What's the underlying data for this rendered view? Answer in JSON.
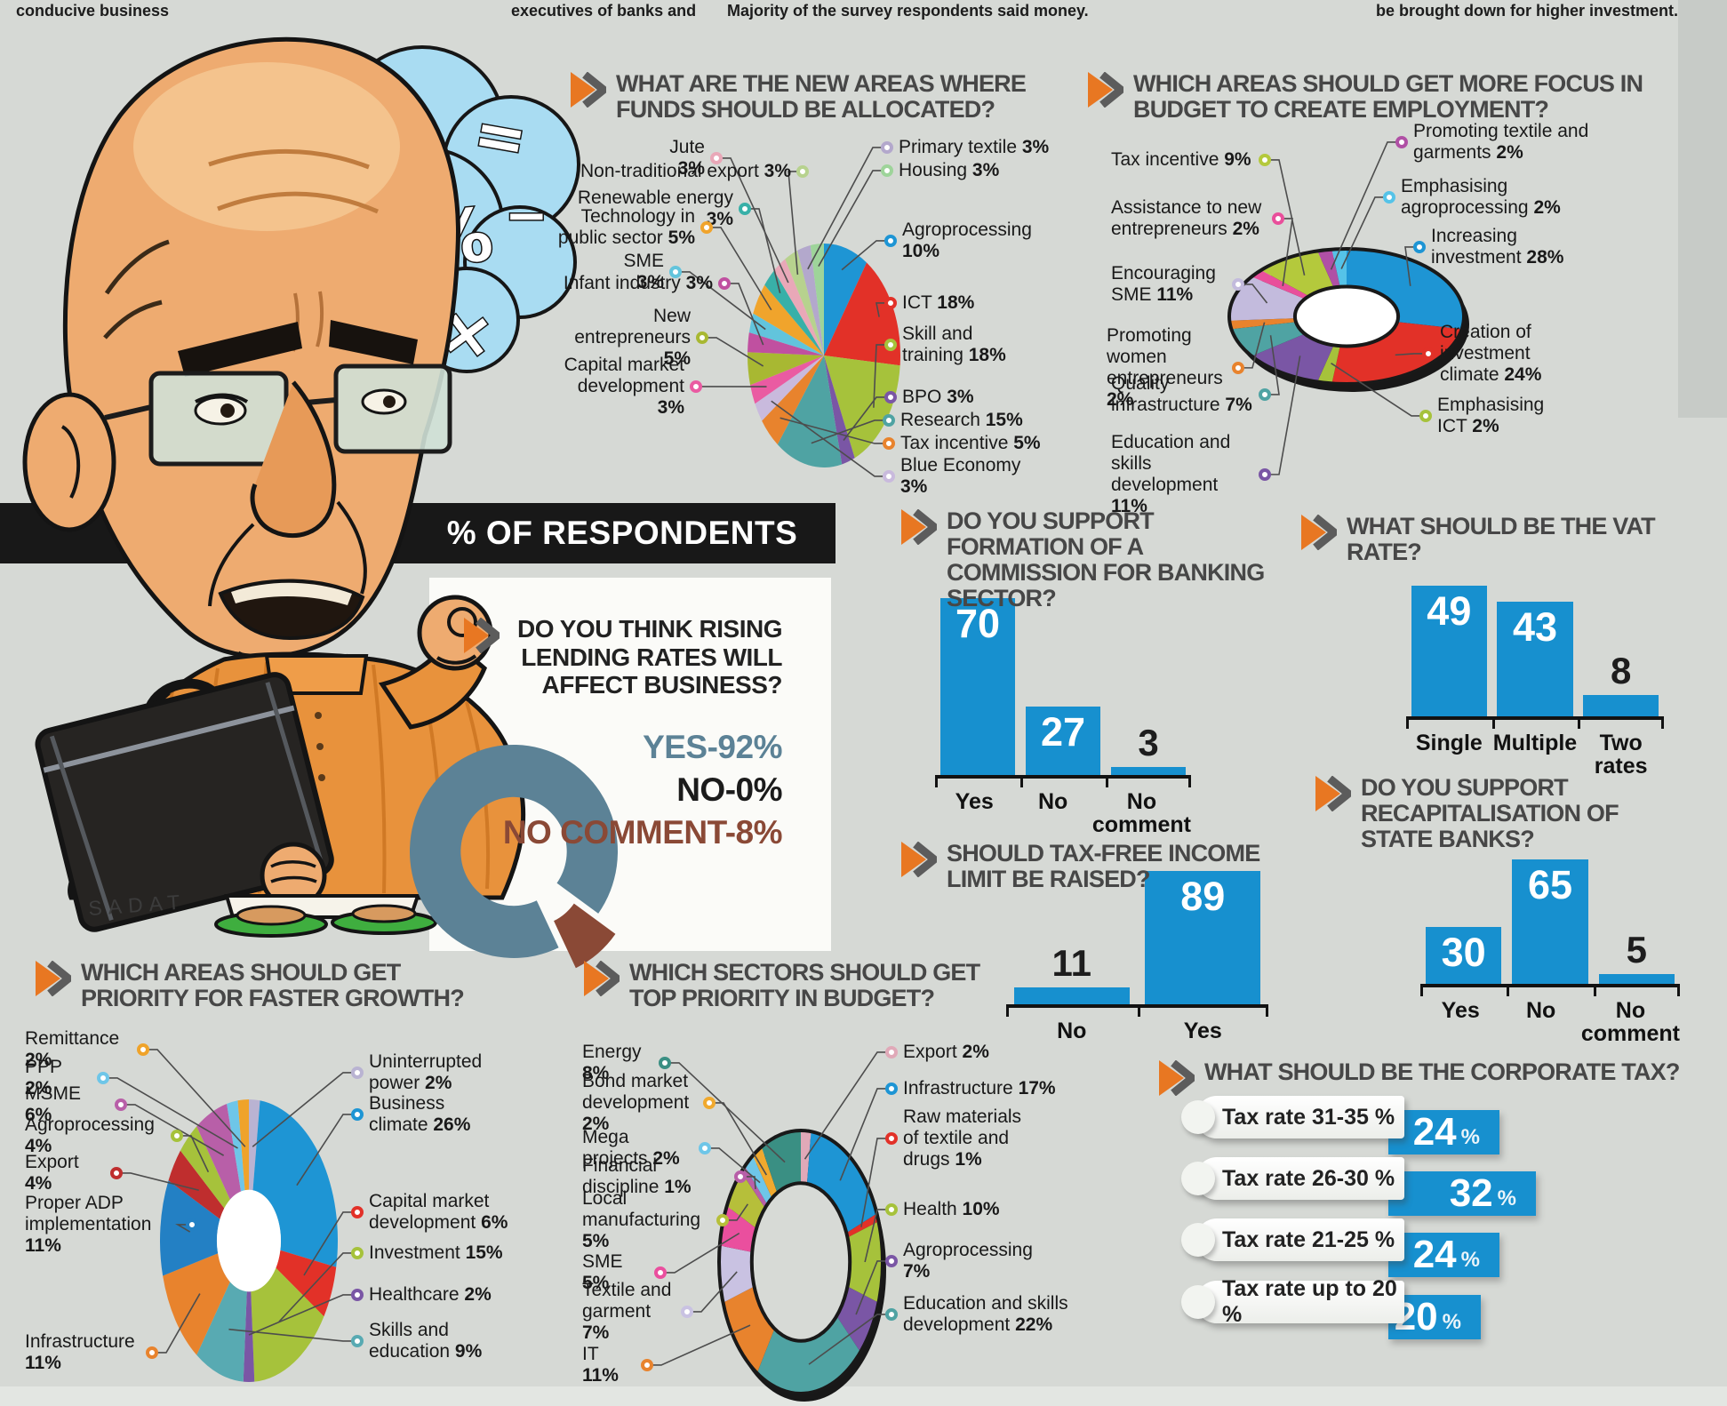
{
  "page": {
    "top_strip": [
      "conducive business",
      "executives of banks and",
      "Majority of the survey respondents said",
      "money.",
      "be brought down for higher investment."
    ],
    "banner": "% OF RESPONDENTS",
    "signature": "SADAT",
    "math_symbols": [
      "+",
      "=",
      "−",
      "%",
      "−",
      "×"
    ],
    "accent_orange": "#e87722",
    "bar_blue": "#1790cf"
  },
  "chart_data": [
    {
      "id": "funds",
      "type": "pie",
      "title": "WHAT ARE THE NEW AREAS WHERE FUNDS SHOULD BE ALLOCATED?",
      "unit": "%",
      "legend_position": "around",
      "slices": [
        {
          "name": "Agroprocessing",
          "pct": "10%",
          "value": 10,
          "color": "#1e95d4"
        },
        {
          "name": "ICT",
          "pct": "18%",
          "value": 18,
          "color": "#e23128"
        },
        {
          "name": "Skill and training",
          "pct": "18%",
          "value": 18,
          "color": "#a6c23b"
        },
        {
          "name": "BPO",
          "pct": "3%",
          "value": 3,
          "color": "#7a56a5"
        },
        {
          "name": "Research",
          "pct": "15%",
          "value": 15,
          "color": "#4fa3a3"
        },
        {
          "name": "Tax incentive",
          "pct": "5%",
          "value": 5,
          "color": "#e8832d"
        },
        {
          "name": "Blue Economy",
          "pct": "3%",
          "value": 3,
          "color": "#c9badd"
        },
        {
          "name": "Capital market development",
          "pct": "3%",
          "value": 3,
          "color": "#ea5ba2"
        },
        {
          "name": "New entrepreneurs",
          "pct": "5%",
          "value": 5,
          "color": "#a8b832"
        },
        {
          "name": "Infant industry",
          "pct": "3%",
          "value": 3,
          "color": "#c050a0"
        },
        {
          "name": "SME",
          "pct": "3%",
          "value": 3,
          "color": "#62c4dc"
        },
        {
          "name": "Technology in public sector",
          "pct": "5%",
          "value": 5,
          "color": "#f0a42c"
        },
        {
          "name": "Renewable energy",
          "pct": "3%",
          "value": 3,
          "color": "#38b0a8"
        },
        {
          "name": "Jute",
          "pct": "3%",
          "value": 3,
          "color": "#e9a8b8"
        },
        {
          "name": "Non-traditional export",
          "pct": "3%",
          "value": 3,
          "color": "#b7d28e"
        },
        {
          "name": "Primary textile",
          "pct": "3%",
          "value": 3,
          "color": "#b3a8cc"
        },
        {
          "name": "Housing",
          "pct": "3%",
          "value": 3,
          "color": "#9ed49a"
        }
      ]
    },
    {
      "id": "employment",
      "type": "donut",
      "title": "WHICH AREAS SHOULD GET MORE FOCUS IN BUDGET TO CREATE EMPLOYMENT?",
      "unit": "%",
      "slices": [
        {
          "name": "Increasing investment",
          "pct": "28%",
          "value": 28,
          "color": "#1e95d4"
        },
        {
          "name": "Creation of investment climate",
          "pct": "24%",
          "value": 24,
          "color": "#e23128"
        },
        {
          "name": "Emphasising ICT",
          "pct": "2%",
          "value": 2,
          "color": "#a6c23b"
        },
        {
          "name": "Education and skills development",
          "pct": "11%",
          "value": 11,
          "color": "#7a56a5"
        },
        {
          "name": "Quality infrastructure",
          "pct": "7%",
          "value": 7,
          "color": "#4fa3a3"
        },
        {
          "name": "Promoting women entrepreneurs",
          "pct": "2%",
          "value": 2,
          "color": "#e8832d"
        },
        {
          "name": "Encouraging SME",
          "pct": "11%",
          "value": 11,
          "color": "#c3bbdd"
        },
        {
          "name": "Assistance to new entrepreneurs",
          "pct": "2%",
          "value": 2,
          "color": "#e94f9b"
        },
        {
          "name": "Tax incentive",
          "pct": "9%",
          "value": 9,
          "color": "#b4c93c"
        },
        {
          "name": "Promoting textile and garments",
          "pct": "2%",
          "value": 2,
          "color": "#b050a5"
        },
        {
          "name": "Emphasising agroprocessing",
          "pct": "2%",
          "value": 2,
          "color": "#55c3e8"
        }
      ]
    },
    {
      "id": "lending",
      "type": "donut",
      "title": "DO YOU THINK RISING LENDING RATES WILL AFFECT BUSINESS?",
      "unit": "%",
      "slices": [
        {
          "label": "YES",
          "display": "YES-92%",
          "value": 92,
          "color": "#5c8296"
        },
        {
          "label": "NO",
          "display": "NO-0%",
          "value": 0,
          "color": "#1b1b1b"
        },
        {
          "label": "NO COMMENT",
          "display": "NO COMMENT-8%",
          "value": 8,
          "color": "#8a4936"
        }
      ]
    },
    {
      "id": "commission",
      "type": "bar",
      "title": "DO YOU SUPPORT FORMATION OF A COMMISSION FOR BANKING SECTOR?",
      "categories": [
        "Yes",
        "No",
        "No comment"
      ],
      "values": [
        70,
        27,
        3
      ],
      "ylim": [
        0,
        75
      ],
      "grid": false
    },
    {
      "id": "vat",
      "type": "bar",
      "title": "WHAT SHOULD BE THE VAT RATE?",
      "categories": [
        "Single",
        "Multiple",
        "Two rates"
      ],
      "values": [
        49,
        43,
        8
      ],
      "ylim": [
        0,
        52
      ],
      "grid": false
    },
    {
      "id": "taxfree",
      "type": "bar",
      "title": "SHOULD TAX-FREE INCOME LIMIT BE RAISED?",
      "categories": [
        "No",
        "Yes"
      ],
      "values": [
        11,
        89
      ],
      "ylim": [
        0,
        92
      ],
      "grid": false
    },
    {
      "id": "recap",
      "type": "bar",
      "title": "DO YOU SUPPORT RECAPITALISATION OF STATE BANKS?",
      "categories": [
        "Yes",
        "No",
        "No comment"
      ],
      "values": [
        30,
        65,
        5
      ],
      "ylim": [
        0,
        70
      ],
      "grid": false
    },
    {
      "id": "growth",
      "type": "donut",
      "title": "WHICH AREAS SHOULD GET PRIORITY FOR FASTER GROWTH?",
      "unit": "%",
      "slices": [
        {
          "name": "Uninterrupted power",
          "pct": "2%",
          "value": 2,
          "color": "#b9b3d2"
        },
        {
          "name": "Business climate",
          "pct": "26%",
          "value": 26,
          "color": "#1e95d4"
        },
        {
          "name": "Capital market development",
          "pct": "6%",
          "value": 6,
          "color": "#e23128"
        },
        {
          "name": "Investment",
          "pct": "15%",
          "value": 15,
          "color": "#a6c23b"
        },
        {
          "name": "Healthcare",
          "pct": "2%",
          "value": 2,
          "color": "#7a56a5"
        },
        {
          "name": "Skills and education",
          "pct": "9%",
          "value": 9,
          "color": "#58aab2"
        },
        {
          "name": "Infrastructure",
          "pct": "11%",
          "value": 11,
          "color": "#e8832d"
        },
        {
          "name": "Proper ADP implementation",
          "pct": "11%",
          "value": 11,
          "color": "#2380c4"
        },
        {
          "name": "Export",
          "pct": "4%",
          "value": 4,
          "color": "#bf2e2e"
        },
        {
          "name": "Agroprocessing",
          "pct": "4%",
          "value": 4,
          "color": "#a6c23b"
        },
        {
          "name": "MSME",
          "pct": "6%",
          "value": 6,
          "color": "#b85fa8"
        },
        {
          "name": "PPP",
          "pct": "2%",
          "value": 2,
          "color": "#6ec6e8"
        },
        {
          "name": "Remittance",
          "pct": "2%",
          "value": 2,
          "color": "#efa32a"
        }
      ]
    },
    {
      "id": "budget",
      "type": "donut",
      "title": "WHICH SECTORS SHOULD GET TOP PRIORITY IN BUDGET?",
      "unit": "%",
      "slices": [
        {
          "name": "Export",
          "pct": "2%",
          "value": 2,
          "color": "#e0a9b8"
        },
        {
          "name": "Infrastructure",
          "pct": "17%",
          "value": 17,
          "color": "#1e95d4"
        },
        {
          "name": "Raw materials of textile and drugs",
          "pct": "1%",
          "value": 1,
          "color": "#e23128"
        },
        {
          "name": "Health",
          "pct": "10%",
          "value": 10,
          "color": "#a6c23b"
        },
        {
          "name": "Agroprocessing",
          "pct": "7%",
          "value": 7,
          "color": "#7a56a5"
        },
        {
          "name": "Education and skills development",
          "pct": "22%",
          "value": 22,
          "color": "#4fa3a3"
        },
        {
          "name": "IT",
          "pct": "11%",
          "value": 11,
          "color": "#e8832d"
        },
        {
          "name": "Textile and garment",
          "pct": "7%",
          "value": 7,
          "color": "#c9c2e2"
        },
        {
          "name": "SME",
          "pct": "5%",
          "value": 5,
          "color": "#ea4f9e"
        },
        {
          "name": "Local manufacturing",
          "pct": "5%",
          "value": 5,
          "color": "#b6bf3a"
        },
        {
          "name": "Financial discipline",
          "pct": "1%",
          "value": 1,
          "color": "#b85fa8"
        },
        {
          "name": "Mega projects",
          "pct": "2%",
          "value": 2,
          "color": "#6ec6e8"
        },
        {
          "name": "Bond market development",
          "pct": "2%",
          "value": 2,
          "color": "#f0a92e"
        },
        {
          "name": "Energy",
          "pct": "8%",
          "value": 8,
          "color": "#3a8f83"
        }
      ]
    },
    {
      "id": "corporate",
      "type": "hbar",
      "title": "WHAT SHOULD BE THE CORPORATE TAX?",
      "unit": "%",
      "categories": [
        "Tax rate 31-35 %",
        "Tax rate 26-30 %",
        "Tax rate 21-25 %",
        "Tax rate up to 20 %"
      ],
      "values": [
        24,
        32,
        24,
        20
      ]
    }
  ]
}
